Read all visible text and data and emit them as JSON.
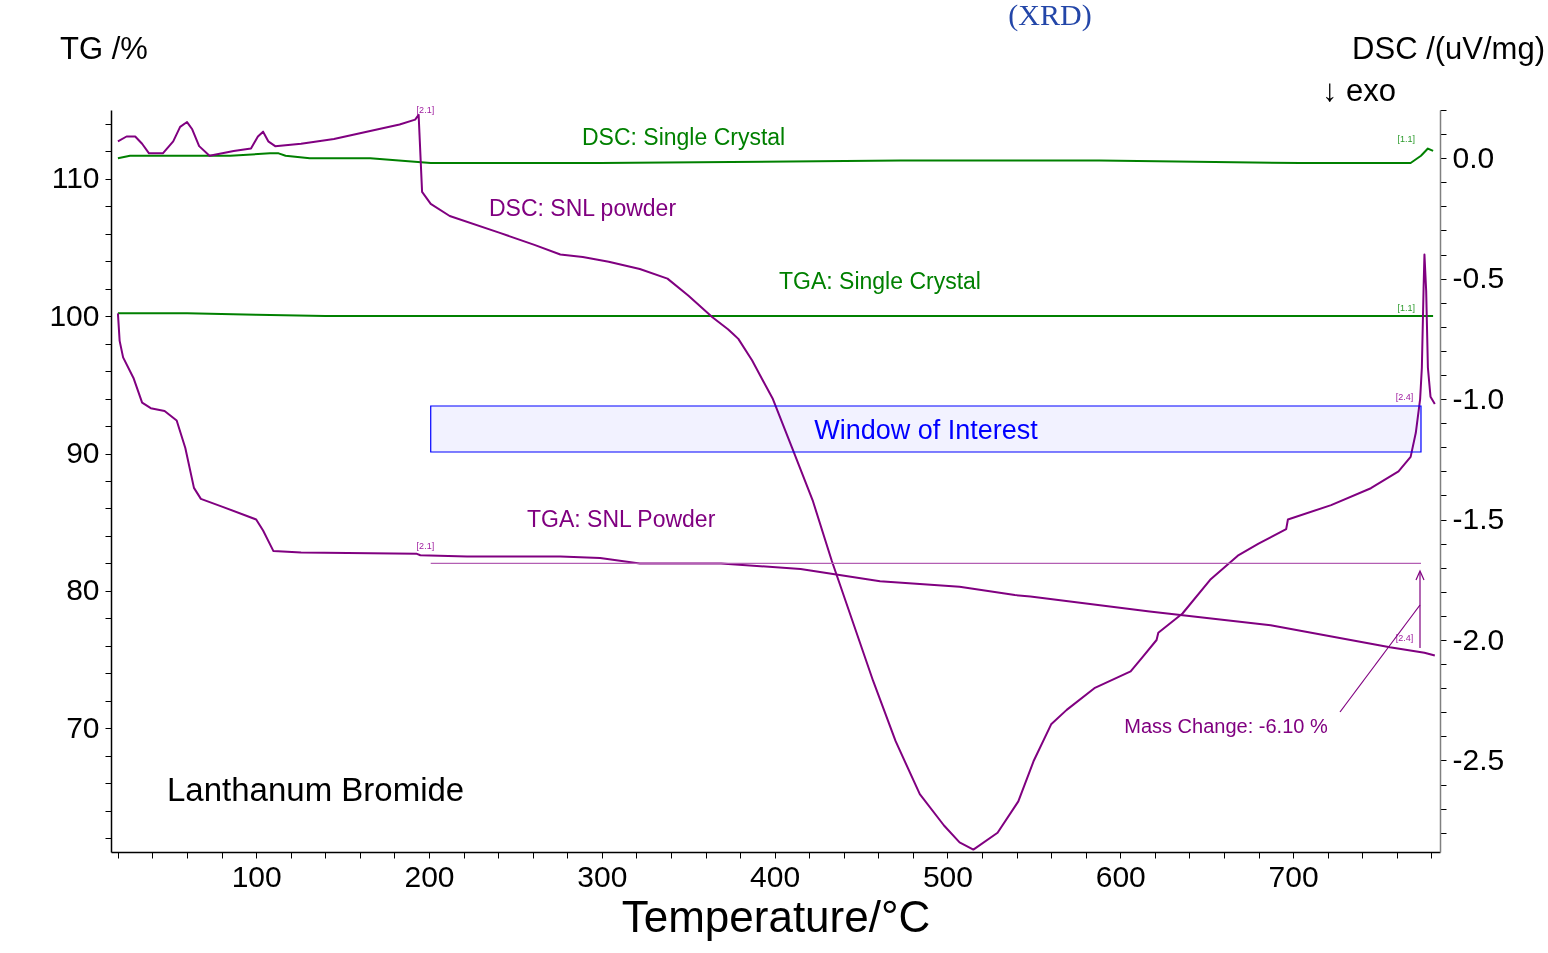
{
  "chart_data": {
    "type": "line",
    "xlabel": "Temperature/°C",
    "ylabel": "TG /%",
    "y2label": "DSC /(uV/mg)",
    "xlim": [
      16,
      785
    ],
    "ylim": [
      61,
      115
    ],
    "y2lim": [
      -2.88,
      0.2
    ],
    "xticks": [
      {
        "value": 20,
        "label": null
      },
      {
        "value": 40,
        "label": null
      },
      {
        "value": 60,
        "label": null
      },
      {
        "value": 80,
        "label": null
      },
      100,
      {
        "value": 120,
        "label": null
      },
      {
        "value": 140,
        "label": null
      },
      {
        "value": 160,
        "label": null
      },
      {
        "value": 180,
        "label": null
      },
      200,
      {
        "value": 220,
        "label": null
      },
      {
        "value": 240,
        "label": null
      },
      {
        "value": 260,
        "label": null
      },
      {
        "value": 280,
        "label": null
      },
      300,
      {
        "value": 320,
        "label": null
      },
      {
        "value": 340,
        "label": null
      },
      {
        "value": 360,
        "label": null
      },
      {
        "value": 380,
        "label": null
      },
      400,
      {
        "value": 420,
        "label": null
      },
      {
        "value": 440,
        "label": null
      },
      {
        "value": 460,
        "label": null
      },
      {
        "value": 480,
        "label": null
      },
      500,
      {
        "value": 520,
        "label": null
      },
      {
        "value": 540,
        "label": null
      },
      {
        "value": 560,
        "label": null
      },
      {
        "value": 580,
        "label": null
      },
      600,
      {
        "value": 620,
        "label": null
      },
      {
        "value": 640,
        "label": null
      },
      {
        "value": 660,
        "label": null
      },
      {
        "value": 680,
        "label": null
      },
      700,
      {
        "value": 720,
        "label": null
      },
      {
        "value": 740,
        "label": null
      },
      {
        "value": 760,
        "label": null
      },
      {
        "value": 780,
        "label": null
      }
    ],
    "yticks": [
      {
        "value": 62,
        "label": null
      },
      {
        "value": 64,
        "label": null
      },
      {
        "value": 66,
        "label": null
      },
      {
        "value": 68,
        "label": null
      },
      70,
      {
        "value": 72,
        "label": null
      },
      {
        "value": 74,
        "label": null
      },
      {
        "value": 76,
        "label": null
      },
      {
        "value": 78,
        "label": null
      },
      80,
      {
        "value": 82,
        "label": null
      },
      {
        "value": 84,
        "label": null
      },
      {
        "value": 86,
        "label": null
      },
      {
        "value": 88,
        "label": null
      },
      90,
      {
        "value": 92,
        "label": null
      },
      {
        "value": 94,
        "label": null
      },
      {
        "value": 96,
        "label": null
      },
      {
        "value": 98,
        "label": null
      },
      100,
      {
        "value": 102,
        "label": null
      },
      {
        "value": 104,
        "label": null
      },
      {
        "value": 106,
        "label": null
      },
      {
        "value": 108,
        "label": null
      },
      110,
      {
        "value": 112,
        "label": null
      },
      {
        "value": 114,
        "label": null
      }
    ],
    "y2ticks": [
      {
        "value": -2.8,
        "label": null
      },
      {
        "value": -2.7,
        "label": null
      },
      {
        "value": -2.6,
        "label": null
      },
      -2.5,
      {
        "value": -2.4,
        "label": null
      },
      {
        "value": -2.3,
        "label": null
      },
      {
        "value": -2.2,
        "label": null
      },
      {
        "value": -2.1,
        "label": null
      },
      {
        "value": -2,
        "label": "-2.0"
      },
      {
        "value": -1.9,
        "label": null
      },
      {
        "value": -1.8,
        "label": null
      },
      {
        "value": -1.7,
        "label": null
      },
      {
        "value": -1.6,
        "label": null
      },
      -1.5,
      {
        "value": -1.4,
        "label": null
      },
      {
        "value": -1.3,
        "label": null
      },
      {
        "value": -1.2,
        "label": null
      },
      {
        "value": -1.1,
        "label": null
      },
      {
        "value": -1,
        "label": "-1.0"
      },
      {
        "value": -0.9,
        "label": null
      },
      {
        "value": -0.8,
        "label": null
      },
      {
        "value": -0.7,
        "label": null
      },
      {
        "value": -0.6,
        "label": null
      },
      -0.5,
      {
        "value": -0.4,
        "label": null
      },
      {
        "value": -0.3,
        "label": null
      },
      {
        "value": -0.2,
        "label": null
      },
      {
        "value": -0.1,
        "label": null
      },
      {
        "value": 0,
        "label": "0.0"
      },
      {
        "value": 0.1,
        "label": null
      },
      {
        "value": 0.2,
        "label": null
      }
    ],
    "series": [
      {
        "name": "DSC: Single Crystal",
        "axis": "y2",
        "color": "#008000",
        "x": [
          20,
          27,
          44,
          85,
          108,
          113,
          117,
          131,
          166,
          201,
          299,
          473,
          588,
          704,
          768,
          774,
          778,
          781
        ],
        "values": [
          0.0,
          0.01,
          0.01,
          0.01,
          0.02,
          0.02,
          0.01,
          0.0,
          0.0,
          -0.02,
          -0.02,
          -0.01,
          -0.01,
          -0.02,
          -0.02,
          0.01,
          0.04,
          0.03
        ]
      },
      {
        "name": "TGA: Single Crystal",
        "color": "#008000",
        "x": [
          20,
          60,
          100,
          140,
          200,
          400,
          600,
          781
        ],
        "values": [
          100.2,
          100.2,
          100.1,
          100.0,
          100.0,
          100.0,
          100.0,
          100.0
        ]
      },
      {
        "name": "DSC: SNL powder",
        "axis": "y2",
        "color": "#800080",
        "x": [
          20,
          25,
          30,
          34,
          38,
          46,
          52,
          56,
          60,
          63,
          67,
          73,
          87,
          97,
          101,
          104,
          107,
          111,
          126,
          145,
          164,
          183,
          192,
          194,
          196,
          201,
          212,
          241,
          261,
          276,
          289,
          304,
          322,
          338,
          350,
          364,
          373,
          376,
          379,
          387,
          399,
          410,
          422,
          433,
          445,
          457,
          470,
          484,
          498,
          507,
          515,
          529,
          541,
          550,
          560,
          569,
          585,
          606,
          613,
          621,
          622,
          636,
          652,
          668,
          680,
          696,
          697,
          722,
          745,
          761,
          768,
          771,
          773.5,
          774.5,
          775.5,
          776,
          777,
          778,
          779.5,
          782
        ],
        "values": [
          0.07,
          0.09,
          0.09,
          0.06,
          0.02,
          0.02,
          0.07,
          0.13,
          0.15,
          0.12,
          0.05,
          0.01,
          0.03,
          0.04,
          0.09,
          0.11,
          0.07,
          0.05,
          0.06,
          0.08,
          0.11,
          0.14,
          0.16,
          0.18,
          -0.14,
          -0.19,
          -0.24,
          -0.31,
          -0.36,
          -0.4,
          -0.41,
          -0.43,
          -0.46,
          -0.5,
          -0.57,
          -0.66,
          -0.71,
          -0.73,
          -0.75,
          -0.84,
          -1.0,
          -1.2,
          -1.42,
          -1.67,
          -1.92,
          -2.17,
          -2.42,
          -2.64,
          -2.77,
          -2.84,
          -2.87,
          -2.8,
          -2.67,
          -2.5,
          -2.35,
          -2.29,
          -2.2,
          -2.13,
          -2.07,
          -2.0,
          -1.97,
          -1.89,
          -1.75,
          -1.65,
          -1.6,
          -1.54,
          -1.5,
          -1.44,
          -1.37,
          -1.3,
          -1.24,
          -1.14,
          -1.0,
          -0.87,
          -0.54,
          -0.4,
          -0.55,
          -0.87,
          -0.99,
          -1.02
        ]
      },
      {
        "name": "TGA: SNL Powder",
        "color": "#800080",
        "x": [
          20,
          21,
          23,
          29,
          34,
          39,
          47,
          54,
          59,
          64,
          68,
          81,
          100,
          104,
          110,
          126,
          193,
          195,
          222,
          276,
          299,
          322,
          369,
          415,
          461,
          507,
          539,
          548,
          617,
          687,
          756,
          776,
          782
        ],
        "values": [
          100.2,
          98.2,
          97.0,
          95.5,
          93.7,
          93.3,
          93.1,
          92.4,
          90.4,
          87.5,
          86.7,
          86.1,
          85.2,
          84.4,
          82.9,
          82.8,
          82.7,
          82.6,
          82.5,
          82.5,
          82.4,
          82.0,
          82.0,
          81.6,
          80.7,
          80.3,
          79.7,
          79.6,
          78.5,
          77.5,
          75.9,
          75.5,
          75.3
        ]
      },
      {
        "color": "#b35fb3",
        "x": [
          201,
          774
        ],
        "values": [
          82.0,
          82.0
        ]
      }
    ],
    "bands": [
      {
        "axis": "x",
        "from": 201,
        "to": 774,
        "label": "Window of Interest",
        "color": "#0000ff"
      }
    ],
    "annotations": [
      "(XRD)",
      "↓ exo",
      "Lanthanum Bromide",
      "Mass Change: -6.10 %",
      {
        "text": "[2.1]",
        "x": 194,
        "y": 114.4
      },
      {
        "text": "[2.1]",
        "x": 194,
        "y": 82.7
      },
      {
        "text": "[1.1]",
        "x": 774,
        "y": 112.3
      },
      {
        "text": "[1.1]",
        "x": 774,
        "y": 100.0
      },
      {
        "text": "[2.4]",
        "x": 773,
        "y": 93.5
      },
      {
        "text": "[2.4]",
        "x": 773,
        "y": 76.0
      }
    ]
  }
}
